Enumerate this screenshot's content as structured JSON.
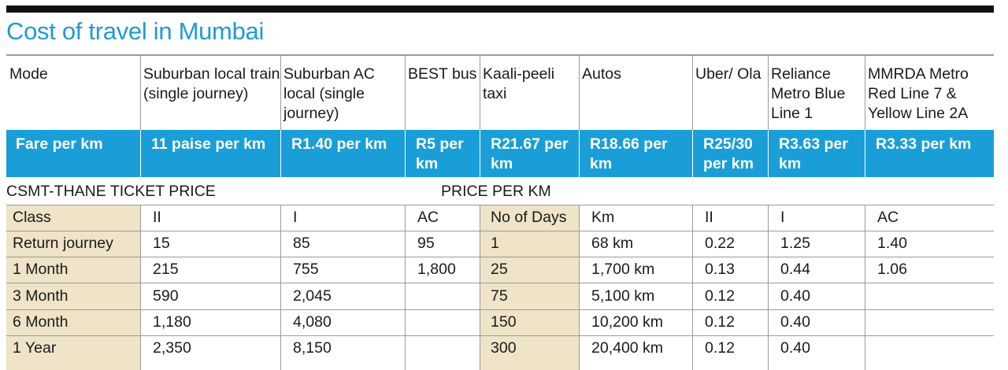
{
  "title": "Cost of travel in Mumbai",
  "header": {
    "cols": [
      "Mode",
      "Suburban local train (single journey)",
      "Suburban AC local (single journey)",
      "BEST bus",
      "Kaali-peeli taxi",
      "Autos",
      "Uber/ Ola",
      "Reliance Metro Blue Line 1",
      "MMRDA Metro Red Line 7 & Yellow Line 2A"
    ]
  },
  "fares": [
    "Fare per km",
    "11 paise per km",
    "R1.40 per km",
    "R5 per km",
    "R21.67 per km",
    "R18.66 per km",
    "R25/30 per km",
    "R3.63 per km",
    "R3.33 per km"
  ],
  "ticket_section": {
    "left_title": "CSMT-THANE TICKET PRICE",
    "right_title": "PRICE PER KM",
    "headers": [
      "Class",
      "II",
      "I",
      "AC",
      "No of Days",
      "Km",
      "II",
      "I",
      "AC"
    ],
    "rows": [
      [
        "Return journey",
        "15",
        "85",
        "95",
        "1",
        "68 km",
        "0.22",
        "1.25",
        "1.40"
      ],
      [
        "1 Month",
        "215",
        "755",
        "1,800",
        "25",
        "1,700 km",
        "0.13",
        "0.44",
        "1.06"
      ],
      [
        "3 Month",
        "590",
        "2,045",
        "",
        "75",
        "5,100 km",
        "0.12",
        "0.40",
        ""
      ],
      [
        "6 Month",
        "1,180",
        "4,080",
        "",
        "150",
        "10,200 km",
        "0.12",
        "0.40",
        ""
      ],
      [
        "1 Year",
        "2,350",
        "8,150",
        "",
        "300",
        "20,400 km",
        "0.12",
        "0.40",
        ""
      ]
    ]
  },
  "colors": {
    "accent_blue": "#1a9ed8",
    "title_blue": "#1e9ad6",
    "beige": "#efe3c8"
  }
}
